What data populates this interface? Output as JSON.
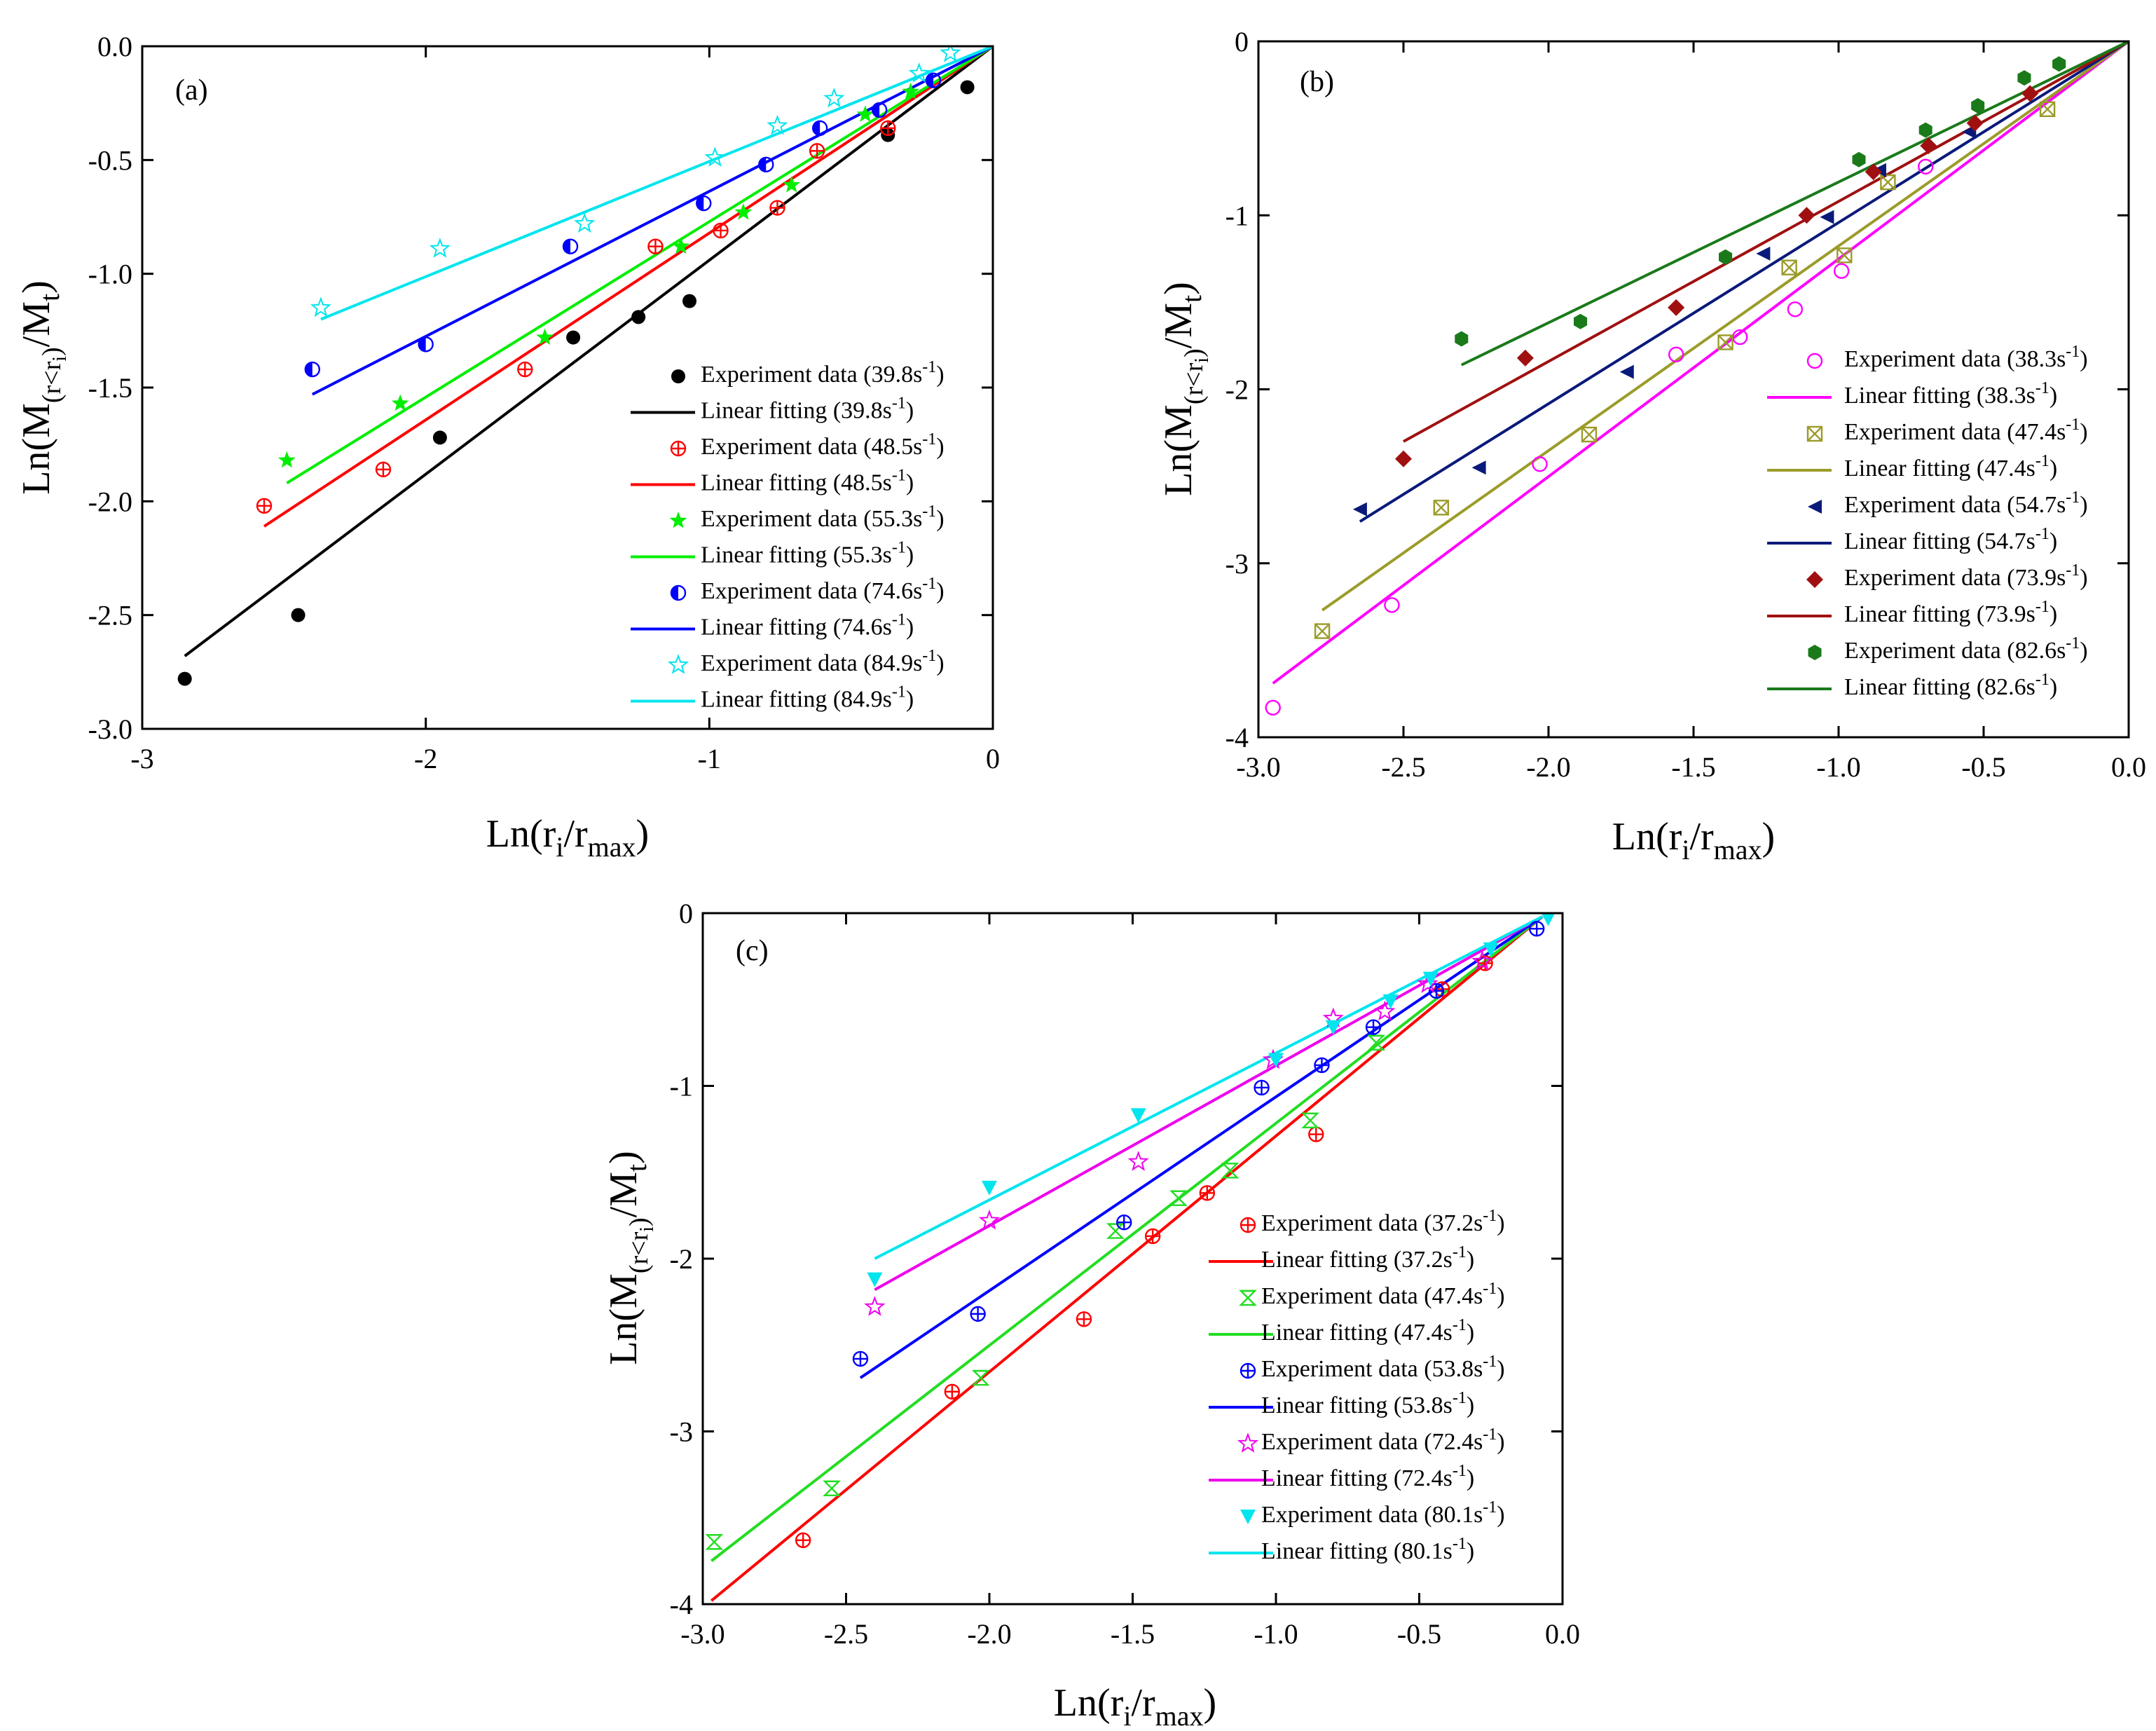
{
  "chart_data": [
    {
      "type": "scatter",
      "panel_label": "(a)",
      "xlabel": "Ln(r_i/r_max)",
      "ylabel": "Ln(M_(r<r_i)/M_t)",
      "xlim": [
        -3,
        0
      ],
      "ylim": [
        -3,
        0
      ],
      "x_ticks": [
        -3,
        -2,
        -1,
        0
      ],
      "x_tick_labels": [
        "-3",
        "-2",
        "-1",
        "0"
      ],
      "y_ticks": [
        0,
        -0.5,
        -1.0,
        -1.5,
        -2.0,
        -2.5,
        -3.0
      ],
      "y_tick_labels": [
        "0.0",
        "-0.5",
        "-1.0",
        "-1.5",
        "-2.0",
        "-2.5",
        "-3.0"
      ],
      "series": [
        {
          "name": "39.8s-1",
          "rate": "39.8",
          "color": "#000000",
          "marker": "dot",
          "x": [
            -2.85,
            -2.45,
            -1.95,
            -1.48,
            -1.25,
            -1.07,
            -0.37,
            -0.09
          ],
          "y": [
            -2.78,
            -2.5,
            -1.72,
            -1.28,
            -1.19,
            -1.12,
            -0.39,
            -0.18
          ],
          "fit": {
            "x": [
              -2.85,
              0
            ],
            "y": [
              -2.68,
              0
            ]
          }
        },
        {
          "name": "48.5s-1",
          "rate": "48.5",
          "color": "#ff0000",
          "marker": "crosscircle",
          "x": [
            -2.57,
            -2.15,
            -1.65,
            -1.19,
            -0.96,
            -0.76,
            -0.62,
            -0.37
          ],
          "y": [
            -2.02,
            -1.86,
            -1.42,
            -0.88,
            -0.81,
            -0.71,
            -0.46,
            -0.36
          ],
          "fit": {
            "x": [
              -2.57,
              0
            ],
            "y": [
              -2.11,
              0
            ]
          }
        },
        {
          "name": "55.3s-1",
          "rate": "55.3",
          "color": "#00ee00",
          "marker": "star",
          "x": [
            -2.49,
            -2.09,
            -1.58,
            -1.1,
            -0.88,
            -0.71,
            -0.45,
            -0.29
          ],
          "y": [
            -1.82,
            -1.57,
            -1.28,
            -0.88,
            -0.73,
            -0.61,
            -0.3,
            -0.2
          ],
          "fit": {
            "x": [
              -2.49,
              0
            ],
            "y": [
              -1.92,
              0
            ]
          }
        },
        {
          "name": "74.6s-1",
          "rate": "74.6",
          "color": "#0000ff",
          "marker": "halfcircle",
          "x": [
            -2.4,
            -2.0,
            -1.49,
            -1.02,
            -0.8,
            -0.61,
            -0.4,
            -0.21
          ],
          "y": [
            -1.42,
            -1.31,
            -0.88,
            -0.69,
            -0.52,
            -0.36,
            -0.28,
            -0.15
          ],
          "fit": {
            "x": [
              -2.4,
              0
            ],
            "y": [
              -1.53,
              0
            ]
          }
        },
        {
          "name": "84.9s-1",
          "rate": "84.9",
          "color": "#00e5ee",
          "marker": "openstar",
          "x": [
            -2.37,
            -1.95,
            -1.44,
            -0.98,
            -0.76,
            -0.56,
            -0.26,
            -0.15
          ],
          "y": [
            -1.15,
            -0.89,
            -0.78,
            -0.49,
            -0.35,
            -0.23,
            -0.12,
            -0.03
          ],
          "fit": {
            "x": [
              -2.37,
              0
            ],
            "y": [
              -1.2,
              0
            ]
          }
        }
      ]
    },
    {
      "type": "scatter",
      "panel_label": "(b)",
      "xlabel": "Ln(r_i/r_max)",
      "ylabel": "Ln(M_(r<r_i)/M_t)",
      "xlim": [
        -3.0,
        0.0
      ],
      "ylim": [
        -4,
        0
      ],
      "x_ticks": [
        -3.0,
        -2.5,
        -2.0,
        -1.5,
        -1.0,
        -0.5,
        0.0
      ],
      "x_tick_labels": [
        "-3.0",
        "-2.5",
        "-2.0",
        "-1.5",
        "-1.0",
        "-0.5",
        "0.0"
      ],
      "y_ticks": [
        0,
        -1,
        -2,
        -3,
        -4
      ],
      "y_tick_labels": [
        "0",
        "-1",
        "-2",
        "-3",
        "-4"
      ],
      "series": [
        {
          "name": "38.3s-1",
          "rate": "38.3",
          "color": "#ff00ff",
          "marker": "opencircle",
          "x": [
            -2.95,
            -2.54,
            -2.03,
            -1.56,
            -1.34,
            -1.15,
            -0.99,
            -0.7
          ],
          "y": [
            -3.83,
            -3.24,
            -2.43,
            -1.8,
            -1.7,
            -1.54,
            -1.32,
            -0.72
          ],
          "fit": {
            "x": [
              -2.95,
              0
            ],
            "y": [
              -3.69,
              0
            ]
          }
        },
        {
          "name": "47.4s-1",
          "rate": "47.4",
          "color": "#9b9b2a",
          "marker": "xbox",
          "x": [
            -2.78,
            -2.37,
            -1.86,
            -1.39,
            -1.17,
            -0.98,
            -0.83,
            -0.28
          ],
          "y": [
            -3.39,
            -2.68,
            -2.26,
            -1.73,
            -1.3,
            -1.23,
            -0.81,
            -0.39
          ],
          "fit": {
            "x": [
              -2.78,
              0
            ],
            "y": [
              -3.27,
              0
            ]
          }
        },
        {
          "name": "54.7s-1",
          "rate": "54.7",
          "color": "#0a1a7a",
          "marker": "lefttri",
          "x": [
            -2.65,
            -2.24,
            -1.73,
            -1.26,
            -1.04,
            -0.86,
            -0.55
          ],
          "y": [
            -2.69,
            -2.45,
            -1.9,
            -1.22,
            -1.01,
            -0.74,
            -0.52
          ],
          "fit": {
            "x": [
              -2.65,
              0
            ],
            "y": [
              -2.76,
              0
            ]
          }
        },
        {
          "name": "73.9s-1",
          "rate": "73.9",
          "color": "#a01010",
          "marker": "diamond",
          "x": [
            -2.5,
            -2.08,
            -1.56,
            -1.11,
            -0.88,
            -0.69,
            -0.53,
            -0.34
          ],
          "y": [
            -2.4,
            -1.82,
            -1.53,
            -1.0,
            -0.75,
            -0.6,
            -0.47,
            -0.3
          ],
          "fit": {
            "x": [
              -2.5,
              0
            ],
            "y": [
              -2.3,
              0
            ]
          }
        },
        {
          "name": "82.6s-1",
          "rate": "82.6",
          "color": "#1a7a1a",
          "marker": "hexagon",
          "x": [
            -2.3,
            -1.89,
            -1.39,
            -0.93,
            -0.7,
            -0.52,
            -0.36,
            -0.24
          ],
          "y": [
            -1.71,
            -1.61,
            -1.24,
            -0.68,
            -0.51,
            -0.37,
            -0.21,
            -0.13
          ],
          "fit": {
            "x": [
              -2.3,
              0
            ],
            "y": [
              -1.86,
              0
            ]
          }
        }
      ]
    },
    {
      "type": "scatter",
      "panel_label": "(c)",
      "xlabel": "Ln(r_i/r_max)",
      "ylabel": "Ln(M_(r<r_i)/M_t)",
      "xlim": [
        -3.0,
        0.0
      ],
      "ylim": [
        -4,
        0
      ],
      "x_ticks": [
        -3.0,
        -2.5,
        -2.0,
        -1.5,
        -1.0,
        -0.5,
        0.0
      ],
      "x_tick_labels": [
        "-3.0",
        "-2.5",
        "-2.0",
        "-1.5",
        "-1.0",
        "-0.5",
        "0.0"
      ],
      "y_ticks": [
        0,
        -1,
        -2,
        -3,
        -4
      ],
      "y_tick_labels": [
        "0",
        "-1",
        "-2",
        "-3",
        "-4"
      ],
      "series": [
        {
          "name": "37.2s-1",
          "rate": "37.2",
          "color": "#ff0000",
          "marker": "crosscircle",
          "x": [
            -2.65,
            -2.13,
            -1.67,
            -1.43,
            -1.24,
            -0.86,
            -0.42,
            -0.27
          ],
          "y": [
            -3.63,
            -2.77,
            -2.35,
            -1.87,
            -1.62,
            -1.28,
            -0.44,
            -0.29
          ],
          "fit": {
            "x": [
              -2.97,
              -0.07
            ],
            "y": [
              -3.98,
              -0.02
            ]
          }
        },
        {
          "name": "47.4s-1",
          "rate": "47.4",
          "color": "#22dd22",
          "marker": "hourglass",
          "x": [
            -2.96,
            -2.55,
            -2.03,
            -1.56,
            -1.34,
            -1.16,
            -0.88,
            -0.65
          ],
          "y": [
            -3.64,
            -3.33,
            -2.69,
            -1.84,
            -1.65,
            -1.49,
            -1.2,
            -0.75
          ],
          "fit": {
            "x": [
              -2.97,
              -0.07
            ],
            "y": [
              -3.75,
              -0.02
            ]
          }
        },
        {
          "name": "53.8s-1",
          "rate": "53.8",
          "color": "#0000ff",
          "marker": "crosscircle",
          "x": [
            -2.45,
            -2.04,
            -1.53,
            -1.05,
            -0.84,
            -0.66,
            -0.44,
            -0.09
          ],
          "y": [
            -2.58,
            -2.32,
            -1.79,
            -1.01,
            -0.88,
            -0.66,
            -0.45,
            -0.09
          ],
          "fit": {
            "x": [
              -2.45,
              -0.07
            ],
            "y": [
              -2.69,
              -0.02
            ]
          }
        },
        {
          "name": "72.4s-1",
          "rate": "72.4",
          "color": "#ee00ee",
          "marker": "openstar",
          "x": [
            -2.4,
            -2.0,
            -1.48,
            -1.01,
            -0.8,
            -0.62,
            -0.47,
            -0.28
          ],
          "y": [
            -2.28,
            -1.78,
            -1.44,
            -0.85,
            -0.61,
            -0.57,
            -0.41,
            -0.28
          ],
          "fit": {
            "x": [
              -2.4,
              -0.07
            ],
            "y": [
              -2.18,
              -0.02
            ]
          }
        },
        {
          "name": "80.1s-1",
          "rate": "80.1",
          "color": "#00e5ee",
          "marker": "downtri",
          "x": [
            -2.4,
            -2.0,
            -1.48,
            -1.0,
            -0.8,
            -0.6,
            -0.46,
            -0.25,
            -0.05
          ],
          "y": [
            -2.12,
            -1.59,
            -1.17,
            -0.85,
            -0.66,
            -0.51,
            -0.38,
            -0.21,
            -0.03
          ],
          "fit": {
            "x": [
              -2.4,
              -0.07
            ],
            "y": [
              -2.0,
              -0.02
            ]
          }
        }
      ]
    }
  ],
  "legend": {
    "experiment_prefix": "Experiment data (",
    "fitting_prefix": "Linear fitting (",
    "unit_base": "s",
    "unit_exp": "-1",
    "suffix": ")"
  }
}
